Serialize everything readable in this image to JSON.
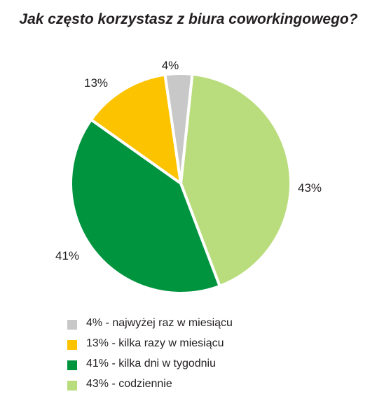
{
  "chart_data": {
    "type": "pie",
    "title": "Jak często korzystasz z biura coworkingowego?",
    "slices": [
      {
        "label": "43% - codziennie",
        "value": 43,
        "display": "43%",
        "color": "#b9dc7c"
      },
      {
        "label": "41% - kilka dni w tygodniu",
        "value": 41,
        "display": "41%",
        "color": "#00943f"
      },
      {
        "label": "13% - kilka razy w miesiącu",
        "value": 13,
        "display": "13%",
        "color": "#fcc300"
      },
      {
        "label": "4% - najwyżej raz w miesiącu",
        "value": 4,
        "display": "4%",
        "color": "#c8c8c8"
      }
    ],
    "legend": [
      {
        "label": "4% - najwyżej raz w miesiącu",
        "color": "#c8c8c8"
      },
      {
        "label": "13% - kilka razy w miesiącu",
        "color": "#fcc300"
      },
      {
        "label": "41% - kilka dni w tygodniu",
        "color": "#00943f"
      },
      {
        "label": "43% - codziennie",
        "color": "#b9dc7c"
      }
    ],
    "legend_position": "bottom"
  }
}
